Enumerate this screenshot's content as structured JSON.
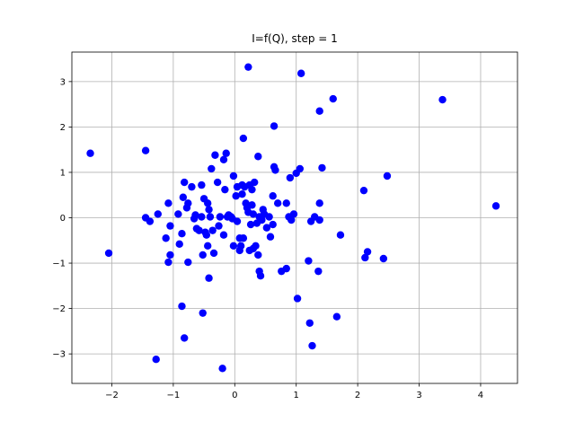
{
  "chart_data": {
    "type": "scatter",
    "title": "I=f(Q), step = 1",
    "xlabel": "",
    "ylabel": "",
    "xlim": [
      -2.65,
      4.6
    ],
    "ylim": [
      -3.65,
      3.65
    ],
    "xticks": [
      -2,
      -1,
      0,
      1,
      2,
      3,
      4
    ],
    "yticks": [
      -3,
      -2,
      -1,
      0,
      1,
      2,
      3
    ],
    "grid": true,
    "marker_color": "#0000ff",
    "points": [
      [
        -2.35,
        1.42
      ],
      [
        -2.05,
        -0.78
      ],
      [
        -1.45,
        1.48
      ],
      [
        -1.45,
        0.0
      ],
      [
        -1.38,
        -0.08
      ],
      [
        -1.28,
        -3.12
      ],
      [
        -1.25,
        0.08
      ],
      [
        -1.12,
        -0.45
      ],
      [
        -1.08,
        0.32
      ],
      [
        -1.08,
        -0.98
      ],
      [
        -1.05,
        -0.18
      ],
      [
        -1.05,
        -0.82
      ],
      [
        -0.92,
        0.08
      ],
      [
        -0.9,
        -0.58
      ],
      [
        -0.86,
        -0.35
      ],
      [
        -0.86,
        -1.95
      ],
      [
        -0.84,
        0.45
      ],
      [
        -0.82,
        0.78
      ],
      [
        -0.82,
        -2.65
      ],
      [
        -0.78,
        0.22
      ],
      [
        -0.76,
        0.32
      ],
      [
        -0.76,
        -0.98
      ],
      [
        -0.7,
        0.68
      ],
      [
        -0.66,
        -0.02
      ],
      [
        -0.64,
        0.06
      ],
      [
        -0.62,
        -0.24
      ],
      [
        -0.58,
        -0.28
      ],
      [
        -0.54,
        0.72
      ],
      [
        -0.54,
        0.02
      ],
      [
        -0.52,
        -0.82
      ],
      [
        -0.52,
        -2.1
      ],
      [
        -0.5,
        0.42
      ],
      [
        -0.48,
        -0.32
      ],
      [
        -0.46,
        -0.38
      ],
      [
        -0.44,
        -0.62
      ],
      [
        -0.44,
        0.32
      ],
      [
        -0.42,
        -1.33
      ],
      [
        -0.42,
        0.18
      ],
      [
        -0.4,
        0.02
      ],
      [
        -0.38,
        1.08
      ],
      [
        -0.36,
        -0.28
      ],
      [
        -0.34,
        -0.78
      ],
      [
        -0.32,
        1.38
      ],
      [
        -0.28,
        0.78
      ],
      [
        -0.26,
        -0.18
      ],
      [
        -0.24,
        0.02
      ],
      [
        -0.2,
        -3.32
      ],
      [
        -0.18,
        1.28
      ],
      [
        -0.18,
        -0.38
      ],
      [
        -0.16,
        0.62
      ],
      [
        -0.14,
        1.42
      ],
      [
        -0.12,
        0.02
      ],
      [
        -0.1,
        0.06
      ],
      [
        -0.06,
        0.02
      ],
      [
        -0.04,
        -0.02
      ],
      [
        -0.02,
        0.92
      ],
      [
        -0.02,
        -0.62
      ],
      [
        0.02,
        0.48
      ],
      [
        0.04,
        -0.08
      ],
      [
        0.04,
        0.68
      ],
      [
        0.08,
        -0.72
      ],
      [
        0.08,
        -0.45
      ],
      [
        0.1,
        -0.62
      ],
      [
        0.12,
        0.72
      ],
      [
        0.12,
        0.52
      ],
      [
        0.14,
        1.75
      ],
      [
        0.14,
        -0.45
      ],
      [
        0.16,
        0.68
      ],
      [
        0.18,
        0.32
      ],
      [
        0.2,
        0.22
      ],
      [
        0.22,
        0.12
      ],
      [
        0.22,
        3.32
      ],
      [
        0.24,
        -0.72
      ],
      [
        0.24,
        0.72
      ],
      [
        0.26,
        -0.15
      ],
      [
        0.28,
        0.62
      ],
      [
        0.28,
        0.28
      ],
      [
        0.3,
        -0.68
      ],
      [
        0.3,
        0.08
      ],
      [
        0.32,
        0.78
      ],
      [
        0.34,
        -0.62
      ],
      [
        0.36,
        -0.12
      ],
      [
        0.38,
        1.35
      ],
      [
        0.38,
        -0.82
      ],
      [
        0.4,
        0.02
      ],
      [
        0.4,
        -1.18
      ],
      [
        0.42,
        -1.28
      ],
      [
        0.44,
        -0.05
      ],
      [
        0.46,
        0.18
      ],
      [
        0.48,
        0.08
      ],
      [
        0.52,
        -0.22
      ],
      [
        0.56,
        0.02
      ],
      [
        0.58,
        -0.42
      ],
      [
        0.62,
        0.48
      ],
      [
        0.62,
        -0.15
      ],
      [
        0.64,
        2.02
      ],
      [
        0.64,
        1.12
      ],
      [
        0.66,
        1.05
      ],
      [
        0.7,
        0.32
      ],
      [
        0.76,
        -1.18
      ],
      [
        0.84,
        -1.12
      ],
      [
        0.84,
        0.32
      ],
      [
        0.88,
        0.02
      ],
      [
        0.9,
        0.88
      ],
      [
        0.92,
        -0.05
      ],
      [
        0.96,
        0.08
      ],
      [
        1.0,
        0.98
      ],
      [
        1.02,
        -1.78
      ],
      [
        1.06,
        1.08
      ],
      [
        1.08,
        3.18
      ],
      [
        1.2,
        -0.95
      ],
      [
        1.22,
        -2.32
      ],
      [
        1.24,
        -0.08
      ],
      [
        1.26,
        -2.82
      ],
      [
        1.3,
        0.02
      ],
      [
        1.36,
        -1.18
      ],
      [
        1.38,
        2.35
      ],
      [
        1.38,
        0.32
      ],
      [
        1.38,
        -0.05
      ],
      [
        1.42,
        1.1
      ],
      [
        1.6,
        2.62
      ],
      [
        1.66,
        -2.18
      ],
      [
        1.72,
        -0.38
      ],
      [
        2.1,
        0.6
      ],
      [
        2.12,
        -0.88
      ],
      [
        2.16,
        -0.75
      ],
      [
        2.42,
        -0.9
      ],
      [
        2.48,
        0.92
      ],
      [
        3.38,
        2.6
      ],
      [
        4.25,
        0.26
      ]
    ]
  }
}
